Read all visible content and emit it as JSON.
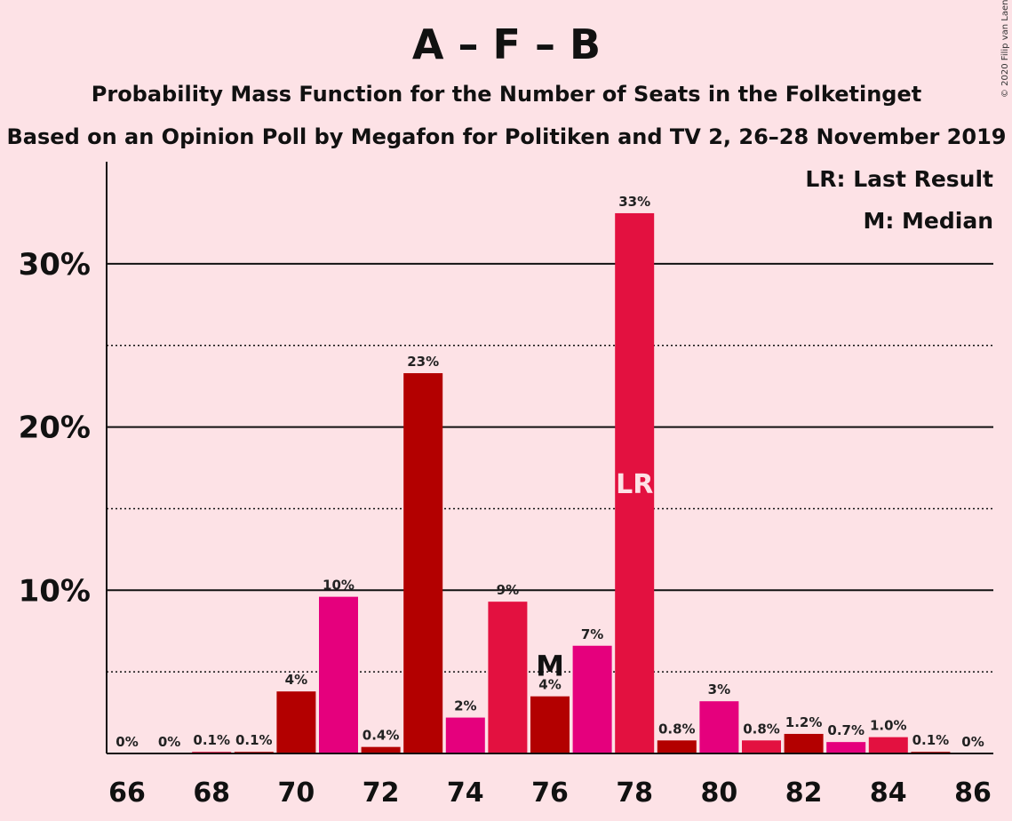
{
  "header": {
    "title": "A – F – B",
    "subtitle": "Probability Mass Function for the Number of Seats in the Folketinget",
    "source": "Based on an Opinion Poll by Megafon for Politiken and TV 2, 26–28 November 2019"
  },
  "legend": {
    "last_result": "LR: Last Result",
    "median": "M: Median"
  },
  "copyright": "© 2020 Filip van Laenen",
  "markers": {
    "median_label": "M",
    "last_result_label": "LR"
  },
  "colors": {
    "background": "#fde2e6",
    "dark_red": "#b30000",
    "magenta": "#e5007d",
    "crimson": "#e31140"
  },
  "chart_data": {
    "type": "bar",
    "x": [
      66,
      67,
      68,
      69,
      70,
      71,
      72,
      73,
      74,
      75,
      76,
      77,
      78,
      79,
      80,
      81,
      82,
      83,
      84,
      85,
      86
    ],
    "values": [
      0,
      0,
      0.1,
      0.1,
      3.8,
      9.6,
      0.4,
      23.3,
      2.2,
      9.3,
      3.5,
      6.6,
      33.1,
      0.8,
      3.2,
      0.8,
      1.2,
      0.7,
      1.0,
      0.1,
      0
    ],
    "labels": [
      "0%",
      "0%",
      "0.1%",
      "0.1%",
      "4%",
      "10%",
      "0.4%",
      "23%",
      "2%",
      "9%",
      "4%",
      "7%",
      "33%",
      "0.8%",
      "3%",
      "0.8%",
      "1.2%",
      "0.7%",
      "1.0%",
      "0.1%",
      "0%"
    ],
    "colors": [
      "#b30000",
      "#e5007d",
      "#e31140",
      "#b30000",
      "#b30000",
      "#e5007d",
      "#b30000",
      "#b30000",
      "#e5007d",
      "#e31140",
      "#b30000",
      "#e5007d",
      "#e31140",
      "#b30000",
      "#e5007d",
      "#e31140",
      "#b30000",
      "#e5007d",
      "#e31140",
      "#b30000",
      "#e5007d"
    ],
    "x_ticks": [
      "66",
      "68",
      "70",
      "72",
      "74",
      "76",
      "78",
      "80",
      "82",
      "84",
      "86"
    ],
    "y_ticks": [
      "10%",
      "20%",
      "30%"
    ],
    "ylim": [
      0,
      36
    ],
    "median": 76,
    "last_result": 78,
    "grid": "solid at 10/20/30, dotted at 5/15/25"
  }
}
